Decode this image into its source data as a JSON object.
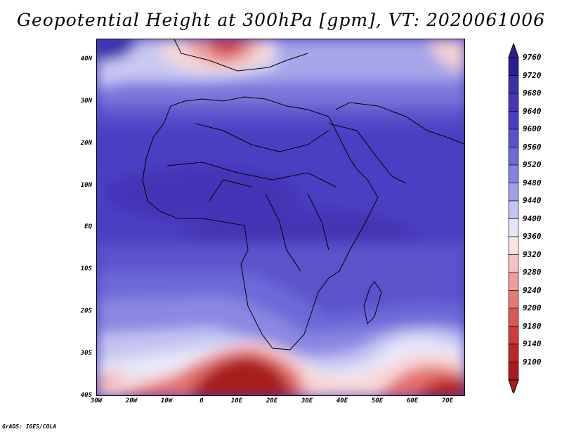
{
  "title": "Geopotential Height at 300hPa [gpm], VT: 2020061006",
  "credit": "GrADS: IGES/COLA",
  "map": {
    "lon_range": [
      -30,
      75
    ],
    "lat_range": [
      -40,
      45
    ],
    "lat_ticks": [
      "40N",
      "30N",
      "20N",
      "10N",
      "EQ",
      "10S",
      "20S",
      "30S",
      "40S"
    ],
    "lat_values": [
      40,
      30,
      20,
      10,
      0,
      -10,
      -20,
      -30,
      -40
    ],
    "lon_ticks": [
      "30W",
      "20W",
      "10W",
      "0",
      "10E",
      "20E",
      "30E",
      "40E",
      "50E",
      "60E",
      "70E"
    ],
    "lon_values": [
      -30,
      -20,
      -10,
      0,
      10,
      20,
      30,
      40,
      50,
      60,
      70
    ]
  },
  "colorbar": {
    "labels": [
      "9760",
      "9720",
      "9680",
      "9640",
      "9600",
      "9560",
      "9520",
      "9480",
      "9440",
      "9400",
      "9360",
      "9320",
      "9280",
      "9240",
      "9200",
      "9180",
      "9140",
      "9100"
    ],
    "colors": [
      "#2b1d94",
      "#3a30a8",
      "#4536b6",
      "#4a3fc2",
      "#5a52cc",
      "#6d69d8",
      "#8583e0",
      "#a0a0e8",
      "#c4c4f2",
      "#e6e6fa",
      "#fbe4e4",
      "#f6c2c2",
      "#ee9c9c",
      "#e57878",
      "#dc5656",
      "#d03a3a",
      "#be2626",
      "#a81c1c"
    ]
  }
}
